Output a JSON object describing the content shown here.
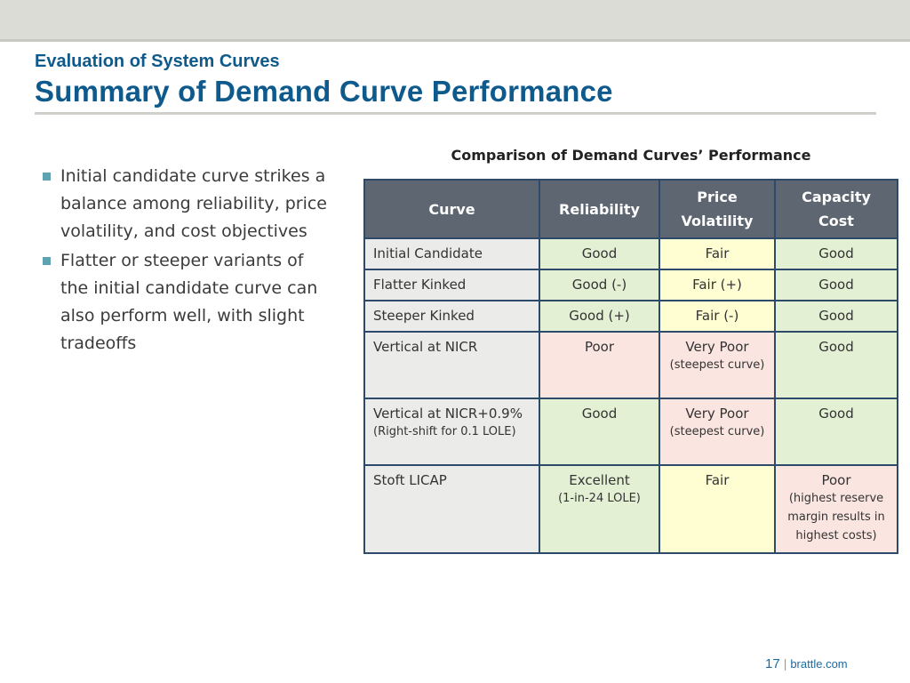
{
  "header": {
    "subtitle": "Evaluation of System Curves",
    "title": "Summary of Demand Curve Performance"
  },
  "bullets": [
    "Initial candidate curve strikes a balance among reliability, price volatility, and cost objectives",
    "Flatter or steeper variants of the initial candidate curve can also perform well, with slight tradeoffs"
  ],
  "table": {
    "caption": "Comparison of Demand Curves’ Performance",
    "headers": {
      "curve": "Curve",
      "reliability": "Reliability",
      "price_volatility_1": "Price",
      "price_volatility_2": "Volatility",
      "capacity_cost_1": "Capacity",
      "capacity_cost_2": "Cost"
    },
    "rows": [
      {
        "curve": "Initial Candidate",
        "curve_note": "",
        "reliability": "Good",
        "reliability_note": "",
        "volatility": "Fair",
        "volatility_note": "",
        "cost": "Good",
        "cost_note": ""
      },
      {
        "curve": "Flatter Kinked",
        "curve_note": "",
        "reliability": "Good (-)",
        "reliability_note": "",
        "volatility": "Fair (+)",
        "volatility_note": "",
        "cost": "Good",
        "cost_note": ""
      },
      {
        "curve": "Steeper Kinked",
        "curve_note": "",
        "reliability": "Good (+)",
        "reliability_note": "",
        "volatility": "Fair (-)",
        "volatility_note": "",
        "cost": "Good",
        "cost_note": ""
      },
      {
        "curve": "Vertical at NICR",
        "curve_note": "",
        "reliability": "Poor",
        "reliability_note": "",
        "volatility": "Very Poor",
        "volatility_note": "(steepest curve)",
        "cost": "Good",
        "cost_note": ""
      },
      {
        "curve": "Vertical at NICR+0.9%",
        "curve_note": "(Right-shift for 0.1 LOLE)",
        "reliability": "Good",
        "reliability_note": "",
        "volatility": "Very Poor",
        "volatility_note": "(steepest curve)",
        "cost": "Good",
        "cost_note": ""
      },
      {
        "curve": "Stoft LICAP",
        "curve_note": "",
        "reliability": "Excellent",
        "reliability_note": "(1-in-24 LOLE)",
        "volatility": "Fair",
        "volatility_note": "",
        "cost": "Poor",
        "cost_note": "(highest reserve margin results in highest costs)"
      }
    ]
  },
  "footer": {
    "page_number": "17",
    "separator": "|",
    "site": "brattle.com"
  },
  "colors": {
    "title_blue": "#0f5a8c",
    "header_gray": "#5d6671",
    "cell_green": "#e4f0d4",
    "cell_yellow": "#fffed2",
    "cell_red": "#fbe5e1",
    "bullet_teal": "#5fa3b0"
  }
}
